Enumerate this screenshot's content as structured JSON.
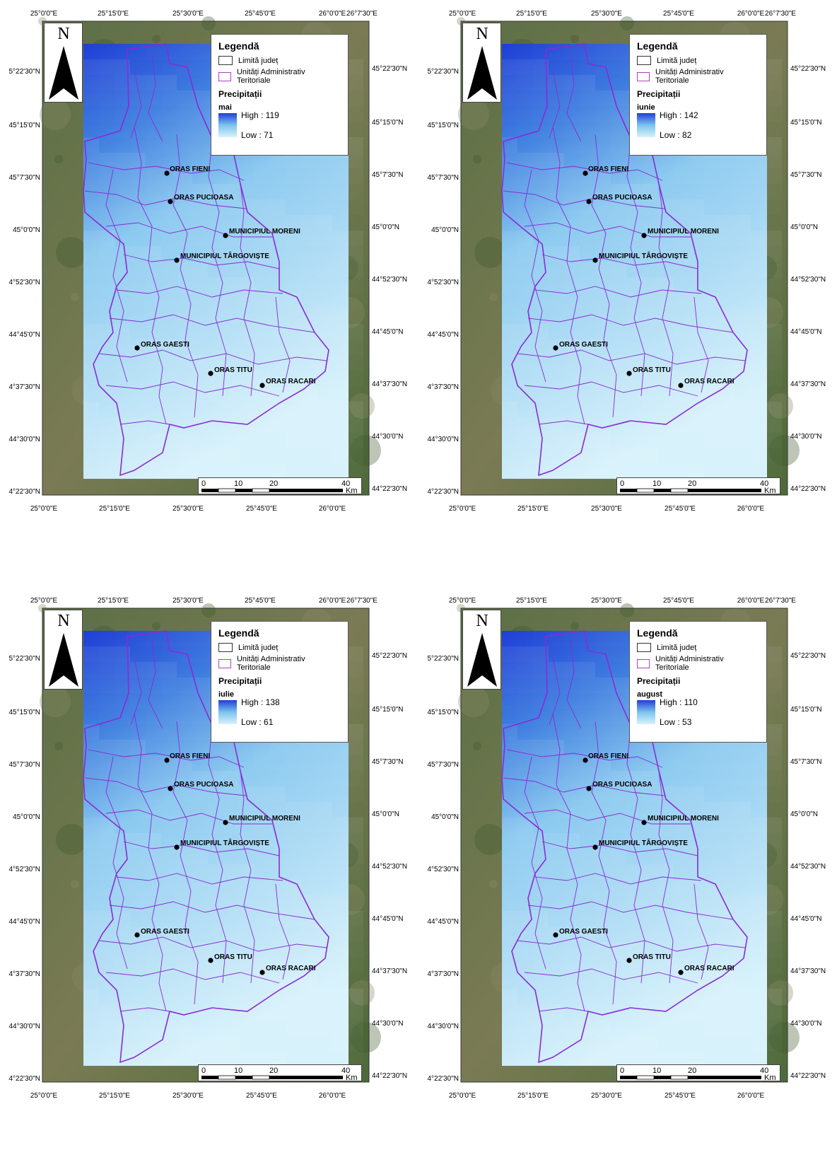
{
  "legend": {
    "title": "Legendă",
    "county_limit": "Limită județ",
    "uat": "Unități Administrativ Teritoriale",
    "precip": "Precipitații"
  },
  "north_letter": "N",
  "scale": {
    "ticks": [
      "0",
      "10",
      "20",
      "40"
    ],
    "unit": "Km"
  },
  "graticule": {
    "top": [
      "25°0'0\"E",
      "25°15'0\"E",
      "25°30'0\"E",
      "25°45'0\"E",
      "26°0'0\"E",
      "26°7'30\"E"
    ],
    "bottom": [
      "25°0'0\"E",
      "25°15'0\"E",
      "25°30'0\"E",
      "25°45'0\"E",
      "26°0'0\"E"
    ],
    "left": [
      "5°22'30\"N",
      "45°15'0\"N",
      "45°7'30\"N",
      "45°0'0\"N",
      "4°52'30\"N",
      "44°45'0\"N",
      "4°37'30\"N",
      "44°30'0\"N",
      "4°22'30\"N"
    ],
    "right": [
      "45°22'30\"N",
      "45°15'0\"N",
      "45°7'30\"N",
      "45°0'0\"N",
      "44°52'30\"N",
      "44°45'0\"N",
      "44°37'30\"N",
      "44°30'0\"N",
      "44°22'30\"N"
    ]
  },
  "cities": [
    "ORAS FIENI",
    "ORAS PUCIOASA",
    "MUNICIPIUL MORENI",
    "MUNICIPIUL TÂRGOVIȘTE",
    "ORAS GAESTI",
    "ORAS TITU",
    "ORAS RACARI"
  ],
  "maps": [
    {
      "month": "mai",
      "high": "High : 119",
      "low": "Low : 71"
    },
    {
      "month": "iunie",
      "high": "High : 142",
      "low": "Low : 82"
    },
    {
      "month": "iulie",
      "high": "High : 138",
      "low": "Low : 61"
    },
    {
      "month": "august",
      "high": "High : 110",
      "low": "Low : 53"
    }
  ],
  "colors": {
    "county_outline": "#8a2bd6",
    "precip_high": "#1f3ed6",
    "precip_low": "#d8f2fb",
    "satellite": "#4f6a3c"
  }
}
